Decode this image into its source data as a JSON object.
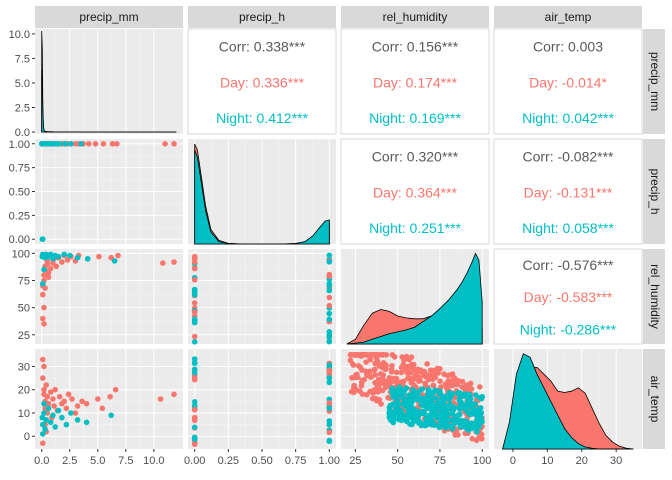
{
  "chart_data": {
    "type": "pairs",
    "variables": [
      "precip_mm",
      "precip_h",
      "rel_humidity",
      "air_temp"
    ],
    "groups": [
      {
        "name": "Day",
        "color": "#F8766D"
      },
      {
        "name": "Night",
        "color": "#00BFC4"
      }
    ],
    "total_label": "Corr",
    "total_color": "#595959",
    "axes": {
      "precip_mm": {
        "range": [
          -0.6,
          12.6
        ],
        "ticks": [
          0.0,
          2.5,
          5.0,
          7.5,
          10.0
        ],
        "tick_labels": [
          "0.0",
          "2.5",
          "5.0",
          "7.5",
          "10.0"
        ]
      },
      "precip_h": {
        "range": [
          -0.05,
          1.05
        ],
        "ticks": [
          0.0,
          0.25,
          0.5,
          0.75,
          1.0
        ],
        "tick_labels": [
          "0.00",
          "0.25",
          "0.50",
          "0.75",
          "1.00"
        ]
      },
      "rel_humidity": {
        "range": [
          16.5,
          104
        ],
        "ticks": [
          25,
          50,
          75,
          100
        ],
        "tick_labels": [
          "25",
          "50",
          "75",
          "100"
        ]
      },
      "air_temp": {
        "range": [
          -5.5,
          37.5
        ],
        "ticks": [
          0,
          10,
          20,
          30
        ],
        "tick_labels": [
          "0",
          "10",
          "20",
          "30"
        ]
      }
    },
    "diag_ranges": {
      "precip_mm": [
        -0.2,
        10.5
      ],
      "precip_h": [
        -0.05,
        1.05
      ],
      "rel_humidity": [
        16.5,
        104
      ],
      "air_temp": [
        -5.5,
        37.5
      ]
    },
    "correlations": [
      {
        "row": "precip_mm",
        "col": "precip_h",
        "total": "Corr: 0.338***",
        "groups": [
          "Day: 0.336***",
          "Night: 0.412***"
        ]
      },
      {
        "row": "precip_mm",
        "col": "rel_humidity",
        "total": "Corr: 0.156***",
        "groups": [
          "Day: 0.174***",
          "Night: 0.169***"
        ]
      },
      {
        "row": "precip_mm",
        "col": "air_temp",
        "total": "Corr: 0.003",
        "groups": [
          "Day: -0.014*",
          "Night: 0.042***"
        ]
      },
      {
        "row": "precip_h",
        "col": "rel_humidity",
        "total": "Corr: 0.320***",
        "groups": [
          "Day: 0.364***",
          "Night: 0.251***"
        ]
      },
      {
        "row": "precip_h",
        "col": "air_temp",
        "total": "Corr: -0.082***",
        "groups": [
          "Day: -0.131***",
          "Night: 0.058***"
        ]
      },
      {
        "row": "rel_humidity",
        "col": "air_temp",
        "total": "Corr: -0.576***",
        "groups": [
          "Day: -0.583***",
          "Night: -0.286***"
        ]
      }
    ],
    "densities": {
      "precip_mm": {
        "x": [
          0,
          0.05,
          0.1,
          0.15,
          0.2,
          0.3,
          0.5,
          1,
          2,
          4,
          6,
          8,
          10,
          12
        ],
        "day": [
          10.3,
          8.5,
          2.8,
          0.6,
          0.2,
          0.08,
          0.04,
          0.02,
          0.01,
          0.005,
          0.003,
          0.002,
          0.002,
          0.001
        ],
        "night": [
          6.3,
          5.6,
          2.3,
          0.6,
          0.2,
          0.08,
          0.04,
          0.02,
          0.01,
          0.005,
          0.003,
          0.002,
          0.001,
          0.0
        ]
      },
      "precip_h": {
        "x": [
          0,
          0.02,
          0.05,
          0.08,
          0.12,
          0.18,
          0.25,
          0.35,
          0.5,
          0.65,
          0.75,
          0.82,
          0.88,
          0.93,
          0.97,
          1.0
        ],
        "day": [
          0.83,
          0.78,
          0.55,
          0.32,
          0.12,
          0.03,
          0.005,
          0.0,
          0.0,
          0.0,
          0.004,
          0.02,
          0.06,
          0.12,
          0.17,
          0.18
        ],
        "night": [
          0.78,
          0.72,
          0.5,
          0.28,
          0.1,
          0.02,
          0.004,
          0.0,
          0.0,
          0.0,
          0.004,
          0.02,
          0.07,
          0.14,
          0.19,
          0.2
        ]
      },
      "rel_humidity": {
        "x": [
          20,
          25,
          30,
          35,
          40,
          45,
          50,
          55,
          60,
          65,
          70,
          75,
          80,
          85,
          88,
          91,
          94,
          96,
          98,
          100
        ],
        "day": [
          0.0,
          0.05,
          0.2,
          0.33,
          0.37,
          0.35,
          0.3,
          0.28,
          0.27,
          0.27,
          0.3,
          0.36,
          0.43,
          0.52,
          0.56,
          0.57,
          0.54,
          0.47,
          0.35,
          0.18
        ],
        "night": [
          0.0,
          0.01,
          0.02,
          0.05,
          0.08,
          0.11,
          0.13,
          0.15,
          0.18,
          0.24,
          0.3,
          0.38,
          0.47,
          0.58,
          0.66,
          0.76,
          0.88,
          0.97,
          0.9,
          0.45
        ]
      },
      "air_temp": {
        "x": [
          -3,
          -1,
          1,
          3,
          5,
          7,
          9,
          11,
          13,
          15,
          17,
          19,
          21,
          23,
          25,
          27,
          29,
          31,
          33,
          35
        ],
        "day": [
          0.0,
          0.02,
          0.06,
          0.1,
          0.12,
          0.12,
          0.11,
          0.1,
          0.085,
          0.083,
          0.085,
          0.09,
          0.082,
          0.06,
          0.038,
          0.02,
          0.01,
          0.004,
          0.001,
          0.0
        ],
        "night": [
          0.0,
          0.04,
          0.11,
          0.14,
          0.135,
          0.11,
          0.09,
          0.07,
          0.05,
          0.03,
          0.017,
          0.008,
          0.003,
          0.001,
          0.0,
          0.0,
          0.0,
          0.0,
          0.0,
          0.0
        ]
      }
    },
    "scatter": {
      "precip_h_vs_precip_mm": {
        "day": [
          [
            0.05,
            1.0
          ],
          [
            0.1,
            1.0
          ],
          [
            0.2,
            1.0
          ],
          [
            0.3,
            1.0
          ],
          [
            0.5,
            1.0
          ],
          [
            0.7,
            1.0
          ],
          [
            0.9,
            1.0
          ],
          [
            1.1,
            1.0
          ],
          [
            1.3,
            1.0
          ],
          [
            1.5,
            1.0
          ],
          [
            1.8,
            1.0
          ],
          [
            2.0,
            1.0
          ],
          [
            2.3,
            1.0
          ],
          [
            2.6,
            1.0
          ],
          [
            3.0,
            1.0
          ],
          [
            3.3,
            1.0
          ],
          [
            3.7,
            1.0
          ],
          [
            4.2,
            1.0
          ],
          [
            4.8,
            1.0
          ],
          [
            5.5,
            1.0
          ],
          [
            6.3,
            1.0
          ],
          [
            6.7,
            1.0
          ],
          [
            11.0,
            1.0
          ],
          [
            11.8,
            1.0
          ]
        ],
        "night": [
          [
            0.0,
            1.0
          ],
          [
            0.05,
            1.0
          ],
          [
            0.1,
            1.0
          ],
          [
            0.2,
            1.0
          ],
          [
            0.4,
            1.0
          ],
          [
            0.6,
            1.0
          ],
          [
            0.8,
            1.0
          ],
          [
            1.0,
            1.0
          ],
          [
            1.3,
            1.0
          ],
          [
            1.6,
            1.0
          ],
          [
            2.1,
            1.0
          ],
          [
            2.6,
            1.0
          ],
          [
            3.5,
            1.0
          ],
          [
            0.05,
            0.0
          ],
          [
            0.1,
            0.0
          ]
        ]
      },
      "rel_humidity_vs_precip_mm": {
        "day": [
          [
            0.1,
            62
          ],
          [
            0.1,
            70
          ],
          [
            0.2,
            75
          ],
          [
            0.2,
            80
          ],
          [
            0.3,
            85
          ],
          [
            0.3,
            88
          ],
          [
            0.5,
            90
          ],
          [
            0.5,
            93
          ],
          [
            0.6,
            78
          ],
          [
            0.8,
            86
          ],
          [
            1.0,
            91
          ],
          [
            1.1,
            95
          ],
          [
            1.3,
            88
          ],
          [
            1.5,
            96
          ],
          [
            1.8,
            92
          ],
          [
            2.0,
            98
          ],
          [
            2.3,
            94
          ],
          [
            2.6,
            97
          ],
          [
            3.0,
            93
          ],
          [
            3.3,
            98
          ],
          [
            4.1,
            95
          ],
          [
            5.1,
            97
          ],
          [
            6.2,
            96
          ],
          [
            6.8,
            98
          ],
          [
            10.8,
            91
          ],
          [
            11.8,
            92
          ],
          [
            0.2,
            50
          ],
          [
            0.1,
            40
          ],
          [
            0.2,
            35
          ],
          [
            0.3,
            68
          ],
          [
            0.6,
            82
          ]
        ],
        "night": [
          [
            0.05,
            97
          ],
          [
            0.1,
            99
          ],
          [
            0.2,
            98
          ],
          [
            0.3,
            96
          ],
          [
            0.4,
            99
          ],
          [
            0.6,
            97
          ],
          [
            0.8,
            99
          ],
          [
            1.0,
            95
          ],
          [
            1.2,
            98
          ],
          [
            1.5,
            97
          ],
          [
            2.0,
            99
          ],
          [
            2.5,
            98
          ],
          [
            3.2,
            96
          ],
          [
            4.1,
            95
          ],
          [
            6.5,
            93
          ],
          [
            0.1,
            72
          ],
          [
            0.2,
            85
          ]
        ]
      },
      "air_temp_vs_precip_mm": {
        "day": [
          [
            0.1,
            25
          ],
          [
            0.2,
            20
          ],
          [
            0.2,
            18
          ],
          [
            0.3,
            15
          ],
          [
            0.3,
            12
          ],
          [
            0.4,
            22
          ],
          [
            0.5,
            10
          ],
          [
            0.5,
            17
          ],
          [
            0.6,
            14
          ],
          [
            0.8,
            19
          ],
          [
            0.9,
            8
          ],
          [
            1.0,
            16
          ],
          [
            1.1,
            13
          ],
          [
            1.2,
            20
          ],
          [
            1.4,
            11
          ],
          [
            1.6,
            17
          ],
          [
            1.8,
            14
          ],
          [
            2.0,
            15
          ],
          [
            2.2,
            12
          ],
          [
            2.4,
            18
          ],
          [
            2.7,
            16
          ],
          [
            3.0,
            10
          ],
          [
            3.2,
            13
          ],
          [
            3.6,
            15
          ],
          [
            4.0,
            14
          ],
          [
            5.0,
            16
          ],
          [
            5.4,
            12
          ],
          [
            6.1,
            17
          ],
          [
            6.6,
            20
          ],
          [
            10.6,
            16
          ],
          [
            11.8,
            18
          ],
          [
            0.1,
            -3
          ],
          [
            0.2,
            30
          ],
          [
            0.1,
            33
          ],
          [
            0.3,
            5
          ],
          [
            0.4,
            2
          ]
        ],
        "night": [
          [
            0.05,
            8
          ],
          [
            0.1,
            5
          ],
          [
            0.2,
            10
          ],
          [
            0.3,
            3
          ],
          [
            0.4,
            7
          ],
          [
            0.6,
            12
          ],
          [
            0.8,
            6
          ],
          [
            1.0,
            9
          ],
          [
            1.2,
            4
          ],
          [
            1.5,
            11
          ],
          [
            1.8,
            8
          ],
          [
            2.2,
            5
          ],
          [
            2.6,
            10
          ],
          [
            3.2,
            7
          ],
          [
            4.0,
            6
          ],
          [
            6.2,
            9
          ],
          [
            0.1,
            1
          ],
          [
            0.2,
            14
          ]
        ]
      }
    }
  }
}
